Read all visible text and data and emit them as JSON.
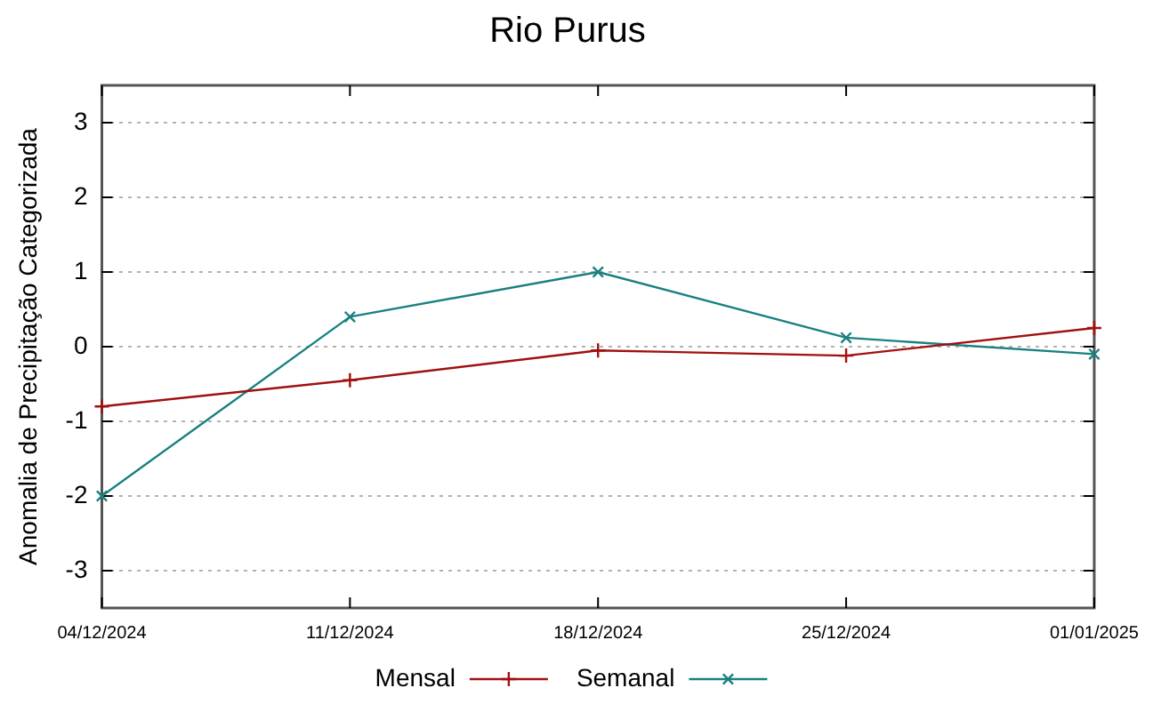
{
  "chart_data": {
    "type": "line",
    "title": "Rio Purus",
    "ylabel": "Anomalia de Precipitação Categorizada",
    "categories": [
      "04/12/2024",
      "11/12/2024",
      "18/12/2024",
      "25/12/2024",
      "01/01/2025"
    ],
    "series": [
      {
        "name": "Mensal",
        "color": "#a01010",
        "marker": "cross",
        "values": [
          -0.8,
          -0.45,
          -0.05,
          -0.12,
          0.25
        ]
      },
      {
        "name": "Semanal",
        "color": "#1a8080",
        "marker": "crossrot",
        "values": [
          -2,
          0.4,
          1,
          0.12,
          -0.1
        ]
      }
    ],
    "ylim": [
      -3.5,
      3.5
    ],
    "yticks": [
      -3,
      -2,
      -1,
      0,
      1,
      2,
      3
    ],
    "grid": "y",
    "legend": "bottom",
    "line_style": "solid"
  }
}
